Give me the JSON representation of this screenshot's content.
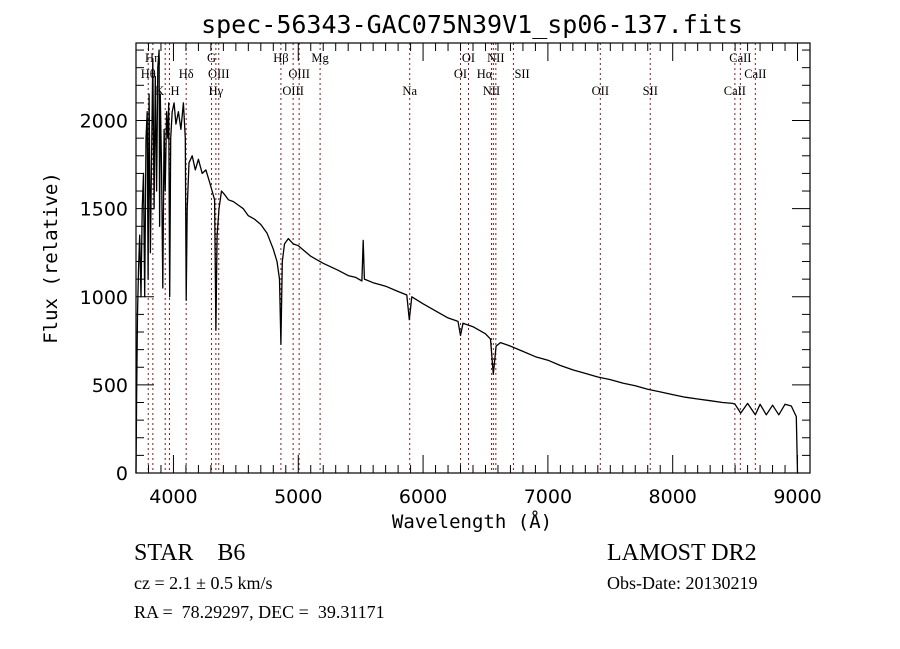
{
  "chart_data": {
    "type": "line",
    "title": "spec-56343-GAC075N39V1_sp06-137.fits",
    "xlabel": "Wavelength (Å)",
    "ylabel": "Flux (relative)",
    "xlim": [
      3700,
      9100
    ],
    "ylim": [
      0,
      2440
    ],
    "xticks": [
      4000,
      5000,
      6000,
      7000,
      8000,
      9000
    ],
    "yticks": [
      0,
      500,
      1000,
      1500,
      2000
    ],
    "grid": false,
    "line_color": "#000000",
    "marker_color": "#8b1a1a",
    "series": [
      {
        "name": "spectrum",
        "x": [
          3700,
          3705,
          3712,
          3720,
          3730,
          3740,
          3750,
          3760,
          3770,
          3780,
          3790,
          3797,
          3805,
          3815,
          3825,
          3835,
          3845,
          3855,
          3865,
          3875,
          3885,
          3889,
          3895,
          3905,
          3915,
          3925,
          3934,
          3945,
          3955,
          3962,
          3970,
          3978,
          3990,
          4005,
          4020,
          4040,
          4060,
          4080,
          4095,
          4102,
          4110,
          4125,
          4150,
          4175,
          4200,
          4230,
          4260,
          4290,
          4310,
          4330,
          4340,
          4350,
          4365,
          4385,
          4410,
          4440,
          4480,
          4520,
          4560,
          4600,
          4650,
          4700,
          4750,
          4800,
          4830,
          4850,
          4861,
          4872,
          4890,
          4920,
          4960,
          5000,
          5050,
          5100,
          5150,
          5200,
          5260,
          5320,
          5400,
          5460,
          5510,
          5520,
          5530,
          5600,
          5700,
          5800,
          5870,
          5890,
          5910,
          6000,
          6100,
          6200,
          6280,
          6300,
          6320,
          6400,
          6500,
          6540,
          6563,
          6585,
          6620,
          6700,
          6800,
          6900,
          7000,
          7100,
          7200,
          7300,
          7400,
          7500,
          7600,
          7700,
          7800,
          7900,
          8000,
          8100,
          8200,
          8300,
          8400,
          8480,
          8500,
          8545,
          8600,
          8662,
          8700,
          8750,
          8800,
          8850,
          8900,
          8950,
          8990,
          9000,
          9005
        ],
        "y": [
          0,
          420,
          900,
          1150,
          1350,
          1000,
          1500,
          1700,
          1000,
          1900,
          2050,
          1100,
          2150,
          1250,
          1800,
          2350,
          1500,
          2250,
          1600,
          2300,
          2400,
          1400,
          2150,
          1700,
          1050,
          1950,
          1600,
          2050,
          1900,
          2100,
          1000,
          1900,
          2050,
          2100,
          1980,
          2050,
          1950,
          2100,
          1900,
          980,
          1500,
          1760,
          1800,
          1720,
          1780,
          1700,
          1720,
          1650,
          1600,
          1550,
          810,
          1350,
          1500,
          1600,
          1580,
          1550,
          1540,
          1520,
          1500,
          1460,
          1440,
          1410,
          1360,
          1270,
          1200,
          1100,
          730,
          1200,
          1300,
          1330,
          1300,
          1290,
          1260,
          1230,
          1210,
          1190,
          1170,
          1150,
          1120,
          1110,
          1090,
          1320,
          1100,
          1080,
          1060,
          1030,
          1010,
          870,
          1000,
          960,
          920,
          880,
          860,
          780,
          850,
          830,
          790,
          760,
          560,
          720,
          740,
          720,
          690,
          660,
          640,
          610,
          585,
          565,
          545,
          530,
          510,
          495,
          475,
          460,
          445,
          430,
          420,
          410,
          400,
          395,
          390,
          340,
          395,
          330,
          390,
          330,
          385,
          330,
          390,
          380,
          320,
          0,
          0
        ]
      }
    ],
    "line_markers": [
      {
        "label": "Hη",
        "wavelength": 3835,
        "row": 1
      },
      {
        "label": "Hθ",
        "wavelength": 3798,
        "row": 2
      },
      {
        "label": "H",
        "wavelength": 3968,
        "row": 3
      },
      {
        "label": "K",
        "wavelength": 3934,
        "row": 3
      },
      {
        "label": "Hδ",
        "wavelength": 4102,
        "row": 2
      },
      {
        "label": "G",
        "wavelength": 4305,
        "row": 1
      },
      {
        "label": "OIII",
        "wavelength": 4363,
        "row": 2
      },
      {
        "label": "Hγ",
        "wavelength": 4340,
        "row": 3
      },
      {
        "label": "Hβ",
        "wavelength": 4861,
        "row": 1
      },
      {
        "label": "OIII",
        "wavelength": 5007,
        "row": 2
      },
      {
        "label": "OIII",
        "wavelength": 4959,
        "row": 3
      },
      {
        "label": "Mg",
        "wavelength": 5175,
        "row": 1
      },
      {
        "label": "Na",
        "wavelength": 5893,
        "row": 3
      },
      {
        "label": "OI",
        "wavelength": 6364,
        "row": 1
      },
      {
        "label": "OI",
        "wavelength": 6300,
        "row": 2
      },
      {
        "label": "NII",
        "wavelength": 6583,
        "row": 1
      },
      {
        "label": "Hα",
        "wavelength": 6563,
        "row": 2
      },
      {
        "label": "SII",
        "wavelength": 6724,
        "row": 2
      },
      {
        "label": "NII",
        "wavelength": 6548,
        "row": 3
      },
      {
        "label": "OII",
        "wavelength": 7420,
        "row": 3
      },
      {
        "label": "SII",
        "wavelength": 7820,
        "row": 3
      },
      {
        "label": "CaII",
        "wavelength": 8542,
        "row": 1
      },
      {
        "label": "CaII",
        "wavelength": 8662,
        "row": 2
      },
      {
        "label": "CaII",
        "wavelength": 8498,
        "row": 3
      }
    ]
  },
  "info": {
    "class": "STAR    B6",
    "survey": "LAMOST DR2",
    "cz": "cz = 2.1 ± 0.5 km/s",
    "obs_date": "Obs-Date: 20130219",
    "coords": "RA =  78.29297, DEC =  39.31171"
  }
}
